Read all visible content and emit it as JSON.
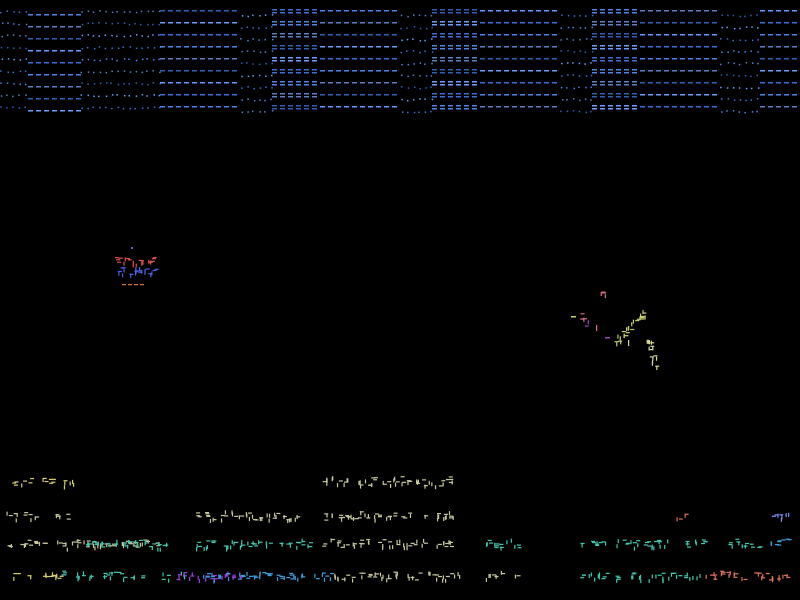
{
  "background": "#000000",
  "palette": {
    "top_band": [
      "#3b6fd8",
      "#4a86e8",
      "#5b7fc4",
      "#2f5fb8",
      "#6aa0ff"
    ],
    "bottom_text": [
      "#d8d070",
      "#c8c8a0",
      "#40c8b0",
      "#3aa0e0",
      "#a040e0",
      "#e07060",
      "#8090ff"
    ],
    "cluster_left": [
      "#e05050",
      "#5060e0",
      "#e07030"
    ],
    "cluster_right": [
      "#c8d070",
      "#e07090",
      "#a040c0",
      "#d8d8a0"
    ]
  }
}
